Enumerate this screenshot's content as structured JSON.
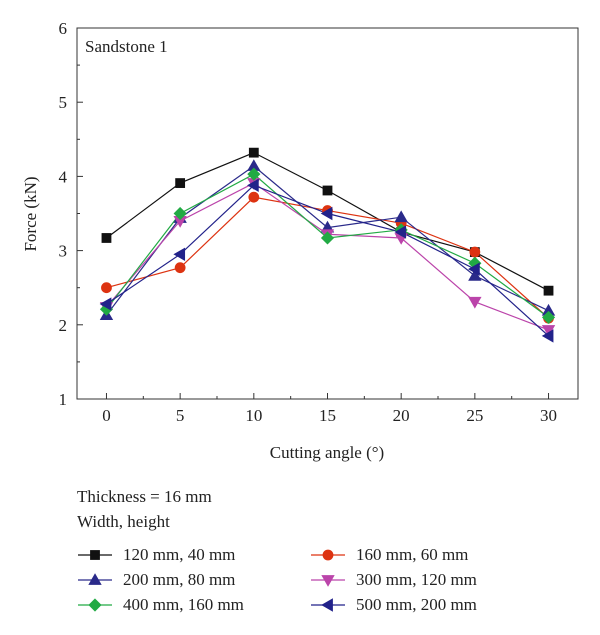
{
  "chart_data": {
    "type": "line",
    "annotation": "Sandstone 1",
    "xlabel": "Cutting angle (°)",
    "ylabel": "Force (kN)",
    "xlim": [
      -2,
      32
    ],
    "ylim": [
      1,
      6
    ],
    "xticks": [
      0,
      5,
      10,
      15,
      20,
      25,
      30
    ],
    "yticks": [
      1,
      2,
      3,
      4,
      5,
      6
    ],
    "x": [
      0,
      5,
      10,
      15,
      20,
      25,
      30
    ],
    "grid": false,
    "legend_placement": "below",
    "legend_title": [
      "Thickness = 16 mm",
      "Width, height"
    ],
    "series": [
      {
        "name": "120 mm, 40 mm",
        "marker": "square",
        "color": "#111111",
        "values": [
          3.17,
          3.91,
          4.32,
          3.81,
          3.25,
          2.98,
          2.46
        ]
      },
      {
        "name": "160 mm, 60 mm",
        "marker": "circle",
        "color": "#dd3311",
        "values": [
          2.5,
          2.77,
          3.72,
          3.54,
          3.37,
          2.98,
          2.09
        ]
      },
      {
        "name": "200 mm, 80 mm",
        "marker": "triangle-up",
        "color": "#2a2a8a",
        "values": [
          2.13,
          3.44,
          4.14,
          3.31,
          3.45,
          2.66,
          2.19
        ]
      },
      {
        "name": "300 mm, 120 mm",
        "marker": "triangle-down",
        "color": "#bb44aa",
        "values": [
          2.24,
          3.4,
          3.91,
          3.22,
          3.17,
          2.31,
          1.93
        ]
      },
      {
        "name": "400 mm, 160 mm",
        "marker": "diamond",
        "color": "#22aa44",
        "values": [
          2.21,
          3.5,
          4.03,
          3.17,
          3.28,
          2.83,
          2.1
        ]
      },
      {
        "name": "500 mm, 200 mm",
        "marker": "triangle-left",
        "color": "#22228a",
        "values": [
          2.28,
          2.95,
          3.88,
          3.5,
          3.25,
          2.75,
          1.85
        ]
      }
    ]
  }
}
